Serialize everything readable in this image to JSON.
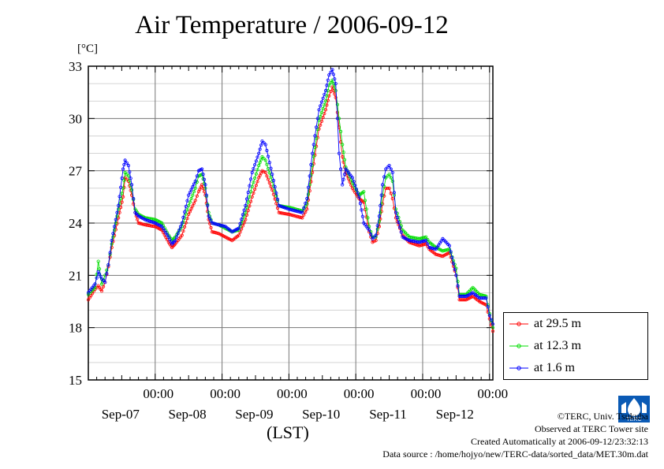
{
  "title": "Air Temperature / 2006-09-12",
  "unit_label": "[°C]",
  "xlabel": "(LST)",
  "credits": {
    "copyright": "©TERC, Univ. Tsukuba",
    "site": "Observed at TERC Tower site",
    "created": "Created Automatically at 2006-09-12/23:32:13",
    "source": "Data source : /home/hojyo/new/TERC-data/sorted_data/MET.30m.dat"
  },
  "logo_text": "TERC",
  "chart_data": {
    "type": "line",
    "title": "Air Temperature / 2006-09-12",
    "ylabel": "[°C]",
    "xlabel": "(LST)",
    "ylim": [
      15,
      33
    ],
    "yticks": [
      15,
      18,
      21,
      24,
      27,
      30,
      33
    ],
    "xlim": [
      0,
      6
    ],
    "xticks": [
      {
        "x": 1,
        "time": "00:00",
        "date": "Sep-07"
      },
      {
        "x": 2,
        "time": "00:00",
        "date": "Sep-08"
      },
      {
        "x": 3,
        "time": "00:00",
        "date": "Sep-09"
      },
      {
        "x": 4,
        "time": "00:00",
        "date": "Sep-10"
      },
      {
        "x": 5,
        "time": "00:00",
        "date": "Sep-11"
      },
      {
        "x": 6,
        "time": "00:00",
        "date": "Sep-12"
      }
    ],
    "grid": true,
    "legend_position": "right",
    "series": [
      {
        "name": "at 29.5 m",
        "color": "#ff0000",
        "points": [
          [
            0,
            19.6
          ],
          [
            0.1,
            20.2
          ],
          [
            0.15,
            20.4
          ],
          [
            0.2,
            20.1
          ],
          [
            0.25,
            20.6
          ],
          [
            0.3,
            21.5
          ],
          [
            0.35,
            22.6
          ],
          [
            0.45,
            24.3
          ],
          [
            0.52,
            25.5
          ],
          [
            0.55,
            26.6
          ],
          [
            0.6,
            26.4
          ],
          [
            0.65,
            25.6
          ],
          [
            0.7,
            24.6
          ],
          [
            0.75,
            24.0
          ],
          [
            0.85,
            23.9
          ],
          [
            1.0,
            23.8
          ],
          [
            1.1,
            23.6
          ],
          [
            1.2,
            22.9
          ],
          [
            1.25,
            22.6
          ],
          [
            1.3,
            22.8
          ],
          [
            1.4,
            23.3
          ],
          [
            1.5,
            24.5
          ],
          [
            1.6,
            25.3
          ],
          [
            1.65,
            25.8
          ],
          [
            1.7,
            26.2
          ],
          [
            1.75,
            25.6
          ],
          [
            1.8,
            24.2
          ],
          [
            1.85,
            23.5
          ],
          [
            1.95,
            23.4
          ],
          [
            2.05,
            23.2
          ],
          [
            2.15,
            23.0
          ],
          [
            2.25,
            23.3
          ],
          [
            2.35,
            24.2
          ],
          [
            2.45,
            25.5
          ],
          [
            2.55,
            26.6
          ],
          [
            2.6,
            27.0
          ],
          [
            2.65,
            26.9
          ],
          [
            2.75,
            25.9
          ],
          [
            2.85,
            24.6
          ],
          [
            3.0,
            24.5
          ],
          [
            3.1,
            24.4
          ],
          [
            3.2,
            24.3
          ],
          [
            3.27,
            24.8
          ],
          [
            3.35,
            26.9
          ],
          [
            3.45,
            29.4
          ],
          [
            3.55,
            30.5
          ],
          [
            3.6,
            31.3
          ],
          [
            3.65,
            31.8
          ],
          [
            3.7,
            31.2
          ],
          [
            3.75,
            29.5
          ],
          [
            3.8,
            27.8
          ],
          [
            3.85,
            26.9
          ],
          [
            3.95,
            26.0
          ],
          [
            4.05,
            25.4
          ],
          [
            4.12,
            25.2
          ],
          [
            4.2,
            23.5
          ],
          [
            4.25,
            22.9
          ],
          [
            4.3,
            23.0
          ],
          [
            4.35,
            23.8
          ],
          [
            4.4,
            25.1
          ],
          [
            4.45,
            26.0
          ],
          [
            4.5,
            26.0
          ],
          [
            4.55,
            25.4
          ],
          [
            4.6,
            24.3
          ],
          [
            4.7,
            23.3
          ],
          [
            4.8,
            22.9
          ],
          [
            4.95,
            22.7
          ],
          [
            5.05,
            22.8
          ],
          [
            5.1,
            22.5
          ],
          [
            5.2,
            22.2
          ],
          [
            5.3,
            22.1
          ],
          [
            5.4,
            22.3
          ],
          [
            5.5,
            21.0
          ],
          [
            5.55,
            19.6
          ],
          [
            5.65,
            19.6
          ],
          [
            5.75,
            19.8
          ],
          [
            5.85,
            19.5
          ],
          [
            5.95,
            19.3
          ],
          [
            6.0,
            18.5
          ],
          [
            6.05,
            17.8
          ]
        ]
      },
      {
        "name": "at 12.3 m",
        "color": "#00dd00",
        "points": [
          [
            0,
            19.9
          ],
          [
            0.1,
            20.3
          ],
          [
            0.15,
            21.8
          ],
          [
            0.2,
            20.5
          ],
          [
            0.25,
            21.0
          ],
          [
            0.3,
            21.6
          ],
          [
            0.35,
            22.8
          ],
          [
            0.45,
            24.8
          ],
          [
            0.52,
            26.0
          ],
          [
            0.55,
            26.9
          ],
          [
            0.6,
            26.7
          ],
          [
            0.65,
            25.9
          ],
          [
            0.7,
            24.8
          ],
          [
            0.75,
            24.5
          ],
          [
            0.85,
            24.3
          ],
          [
            1.0,
            24.2
          ],
          [
            1.1,
            24.0
          ],
          [
            1.2,
            23.3
          ],
          [
            1.25,
            23.0
          ],
          [
            1.3,
            23.2
          ],
          [
            1.4,
            23.8
          ],
          [
            1.5,
            25.0
          ],
          [
            1.6,
            26.0
          ],
          [
            1.65,
            26.7
          ],
          [
            1.7,
            26.8
          ],
          [
            1.75,
            26.0
          ],
          [
            1.8,
            24.6
          ],
          [
            1.85,
            24.0
          ],
          [
            1.95,
            23.9
          ],
          [
            2.05,
            23.7
          ],
          [
            2.15,
            23.5
          ],
          [
            2.25,
            23.6
          ],
          [
            2.35,
            24.6
          ],
          [
            2.45,
            26.1
          ],
          [
            2.55,
            27.3
          ],
          [
            2.6,
            27.8
          ],
          [
            2.65,
            27.6
          ],
          [
            2.75,
            26.4
          ],
          [
            2.85,
            25.0
          ],
          [
            3.0,
            24.9
          ],
          [
            3.1,
            24.8
          ],
          [
            3.2,
            24.7
          ],
          [
            3.27,
            25.1
          ],
          [
            3.35,
            27.3
          ],
          [
            3.45,
            29.9
          ],
          [
            3.55,
            31.0
          ],
          [
            3.6,
            31.9
          ],
          [
            3.65,
            32.2
          ],
          [
            3.7,
            31.6
          ],
          [
            3.75,
            30.0
          ],
          [
            3.8,
            28.5
          ],
          [
            3.85,
            27.2
          ],
          [
            3.95,
            26.3
          ],
          [
            4.05,
            25.6
          ],
          [
            4.12,
            25.8
          ],
          [
            4.2,
            23.8
          ],
          [
            4.25,
            23.2
          ],
          [
            4.3,
            23.2
          ],
          [
            4.35,
            24.1
          ],
          [
            4.4,
            25.6
          ],
          [
            4.45,
            26.6
          ],
          [
            4.5,
            26.8
          ],
          [
            4.55,
            26.4
          ],
          [
            4.6,
            24.8
          ],
          [
            4.7,
            23.6
          ],
          [
            4.8,
            23.2
          ],
          [
            4.95,
            23.1
          ],
          [
            5.05,
            23.2
          ],
          [
            5.1,
            22.9
          ],
          [
            5.2,
            22.6
          ],
          [
            5.3,
            22.4
          ],
          [
            5.4,
            22.5
          ],
          [
            5.5,
            21.4
          ],
          [
            5.55,
            19.9
          ],
          [
            5.65,
            19.9
          ],
          [
            5.75,
            20.3
          ],
          [
            5.85,
            19.9
          ],
          [
            5.95,
            19.8
          ],
          [
            6.0,
            18.8
          ],
          [
            6.05,
            18.0
          ]
        ]
      },
      {
        "name": "at 1.6 m",
        "color": "#0000ff",
        "points": [
          [
            0,
            20.0
          ],
          [
            0.1,
            20.5
          ],
          [
            0.15,
            21.2
          ],
          [
            0.2,
            20.8
          ],
          [
            0.25,
            20.6
          ],
          [
            0.3,
            21.6
          ],
          [
            0.35,
            23.0
          ],
          [
            0.45,
            25.0
          ],
          [
            0.52,
            27.1
          ],
          [
            0.55,
            27.6
          ],
          [
            0.6,
            27.3
          ],
          [
            0.65,
            26.2
          ],
          [
            0.7,
            24.6
          ],
          [
            0.75,
            24.4
          ],
          [
            0.85,
            24.2
          ],
          [
            1.0,
            24.0
          ],
          [
            1.1,
            23.8
          ],
          [
            1.2,
            23.2
          ],
          [
            1.25,
            22.8
          ],
          [
            1.3,
            23.0
          ],
          [
            1.4,
            24.0
          ],
          [
            1.5,
            25.6
          ],
          [
            1.6,
            26.4
          ],
          [
            1.65,
            27.0
          ],
          [
            1.7,
            27.1
          ],
          [
            1.75,
            26.2
          ],
          [
            1.8,
            24.4
          ],
          [
            1.85,
            24.0
          ],
          [
            1.95,
            23.9
          ],
          [
            2.05,
            23.8
          ],
          [
            2.15,
            23.5
          ],
          [
            2.25,
            23.7
          ],
          [
            2.35,
            25.0
          ],
          [
            2.45,
            26.9
          ],
          [
            2.55,
            28.0
          ],
          [
            2.6,
            28.7
          ],
          [
            2.65,
            28.5
          ],
          [
            2.75,
            26.8
          ],
          [
            2.85,
            25.0
          ],
          [
            3.0,
            24.8
          ],
          [
            3.1,
            24.7
          ],
          [
            3.2,
            24.6
          ],
          [
            3.27,
            25.4
          ],
          [
            3.35,
            28.0
          ],
          [
            3.45,
            30.5
          ],
          [
            3.55,
            31.6
          ],
          [
            3.6,
            32.5
          ],
          [
            3.65,
            32.8
          ],
          [
            3.7,
            32.0
          ],
          [
            3.75,
            28.0
          ],
          [
            3.8,
            26.2
          ],
          [
            3.85,
            27.1
          ],
          [
            3.95,
            26.6
          ],
          [
            4.05,
            25.5
          ],
          [
            4.12,
            24.0
          ],
          [
            4.2,
            23.6
          ],
          [
            4.25,
            23.1
          ],
          [
            4.3,
            23.3
          ],
          [
            4.35,
            24.4
          ],
          [
            4.4,
            26.2
          ],
          [
            4.45,
            27.1
          ],
          [
            4.5,
            27.3
          ],
          [
            4.55,
            26.9
          ],
          [
            4.6,
            24.6
          ],
          [
            4.7,
            23.2
          ],
          [
            4.8,
            23.0
          ],
          [
            4.95,
            22.9
          ],
          [
            5.05,
            23.0
          ],
          [
            5.1,
            22.6
          ],
          [
            5.2,
            22.5
          ],
          [
            5.3,
            23.1
          ],
          [
            5.4,
            22.7
          ],
          [
            5.5,
            21.0
          ],
          [
            5.55,
            19.8
          ],
          [
            5.65,
            19.8
          ],
          [
            5.75,
            20.0
          ],
          [
            5.85,
            19.7
          ],
          [
            5.95,
            19.7
          ],
          [
            6.0,
            18.7
          ],
          [
            6.05,
            18.2
          ]
        ]
      }
    ]
  }
}
